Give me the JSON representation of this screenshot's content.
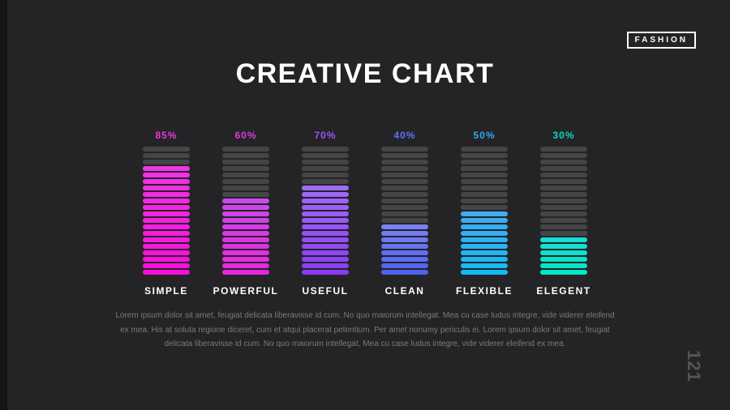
{
  "page": {
    "brand": "FASHION",
    "title": "CREATIVE CHART",
    "page_number": "121",
    "paragraph": "Lorem ipsum dolor sit amet, feugiat delicata liberavisse id cum. No quo maiorum intellegat. Mea cu case ludus integre, vide viderer eleifend ex mea. His at soluta regione diceret, cum et atqui placerat petentium. Per amet nonumy periculis ei. Lorem ipsum dolor sit amet, feugiat delicata liberavisse id cum. No quo maiorum intellegat, Mea cu case ludus integre, vide viderer eleifend ex mea."
  },
  "chart_data": {
    "type": "bar",
    "title": "CREATIVE CHART",
    "unit": "%",
    "total_segments": 20,
    "empty_color": "#454547",
    "categories": [
      "SIMPLE",
      "POWERFUL",
      "USEFUL",
      "CLEAN",
      "FLEXIBLE",
      "ELEGENT"
    ],
    "values": [
      85,
      60,
      70,
      40,
      50,
      30
    ],
    "series": [
      {
        "label": "SIMPLE",
        "value": 85,
        "value_label": "85%",
        "color_top": "#ef36e3",
        "color_bottom": "#fb0cdd",
        "label_color": "#ef35dd"
      },
      {
        "label": "POWERFUL",
        "value": 60,
        "value_label": "60%",
        "color_top": "#c94aec",
        "color_bottom": "#ea25dd",
        "label_color": "#dd3bdb"
      },
      {
        "label": "USEFUL",
        "value": 70,
        "value_label": "70%",
        "color_top": "#a06bf9",
        "color_bottom": "#8a3bf2",
        "label_color": "#9a55f5"
      },
      {
        "label": "CLEAN",
        "value": 40,
        "value_label": "40%",
        "color_top": "#7b80f2",
        "color_bottom": "#4e63f2",
        "label_color": "#5e72f0"
      },
      {
        "label": "FLEXIBLE",
        "value": 50,
        "value_label": "50%",
        "color_top": "#40aaf2",
        "color_bottom": "#12bdf5",
        "label_color": "#2fa9f0"
      },
      {
        "label": "ELEGENT",
        "value": 30,
        "value_label": "30%",
        "color_top": "#16ddd2",
        "color_bottom": "#00e7c6",
        "label_color": "#0cd8c9"
      }
    ]
  }
}
